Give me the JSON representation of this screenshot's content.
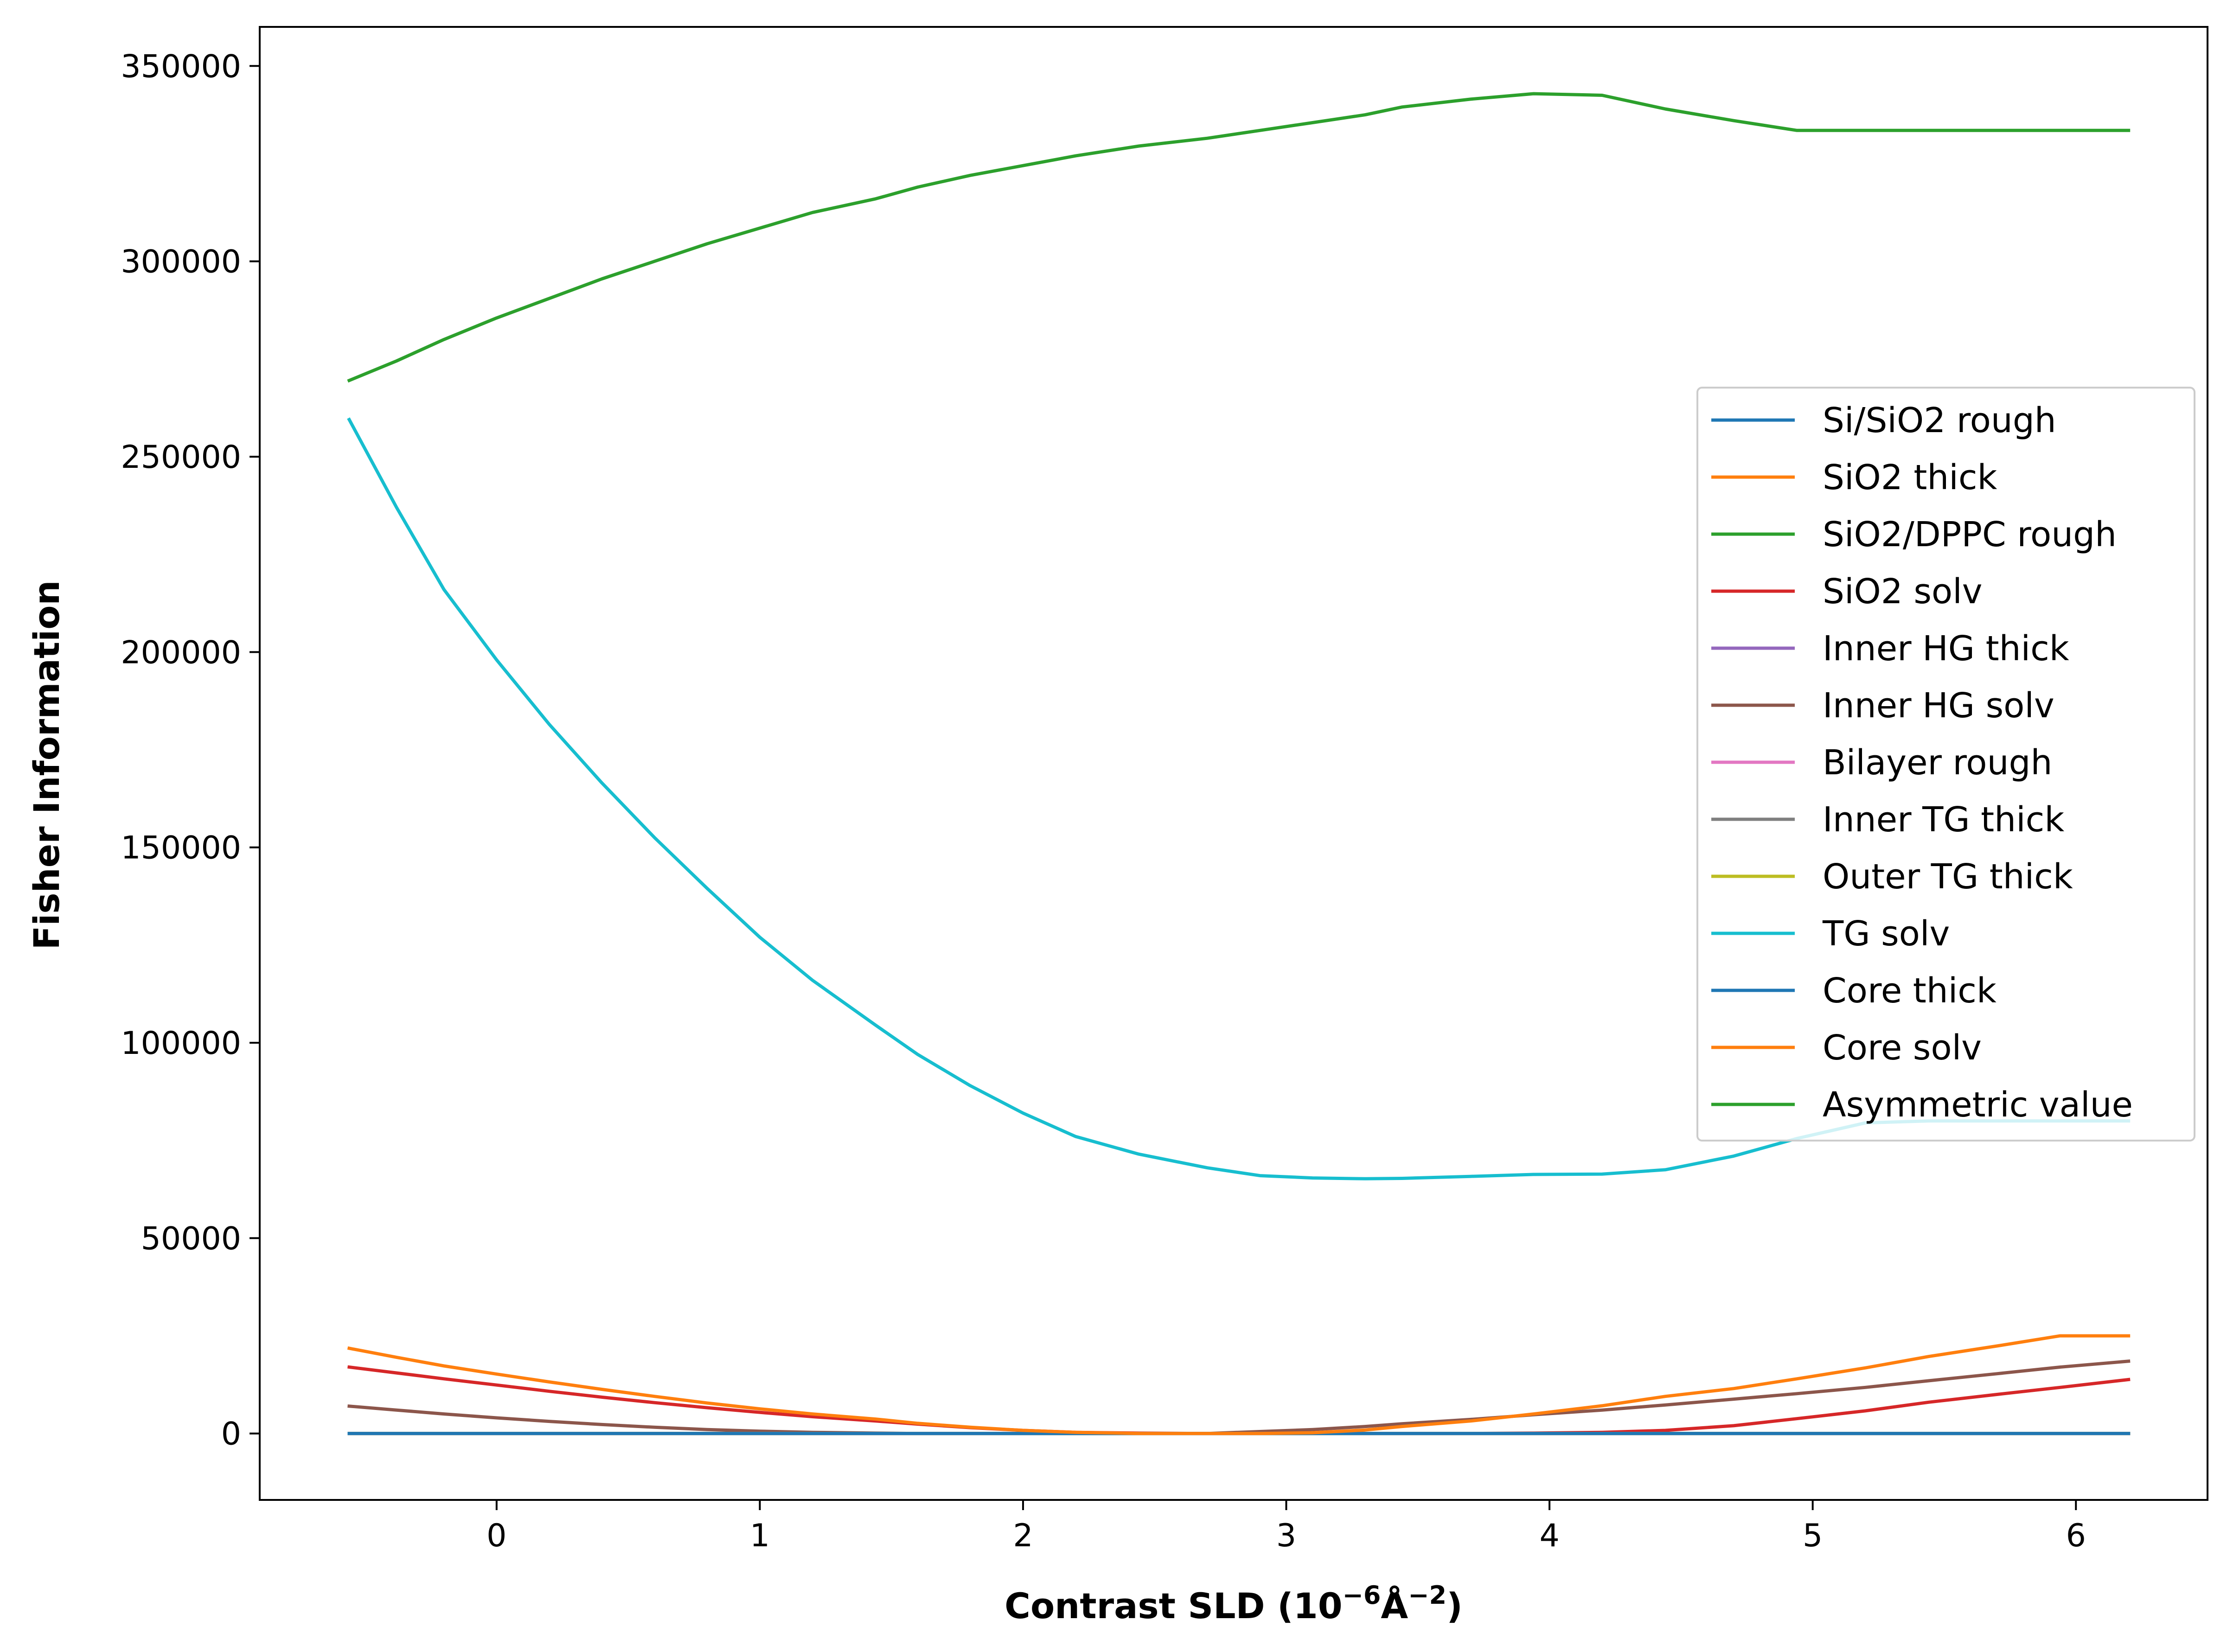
{
  "chart_data": {
    "type": "line",
    "title": "",
    "xlabel_main": "Contrast SLD (10",
    "xlabel_exp1": "−6",
    "xlabel_mid": "Å",
    "xlabel_exp2": "−2",
    "xlabel_end": ")",
    "ylabel": "Fisher Information",
    "xlim": [
      -0.9,
      6.5
    ],
    "ylim": [
      -17000,
      360000
    ],
    "xticks": [
      0,
      1,
      2,
      3,
      4,
      5,
      6
    ],
    "xtick_labels": [
      "0",
      "1",
      "2",
      "3",
      "4",
      "5",
      "6"
    ],
    "yticks": [
      0,
      50000,
      100000,
      150000,
      200000,
      250000,
      300000,
      350000
    ],
    "ytick_labels": [
      "0",
      "50000",
      "100000",
      "150000",
      "200000",
      "250000",
      "300000",
      "350000"
    ],
    "x": [
      -0.56,
      -0.38,
      -0.2,
      0.0,
      0.2,
      0.4,
      0.6,
      0.8,
      1.0,
      1.2,
      1.44,
      1.6,
      1.8,
      2.0,
      2.2,
      2.44,
      2.7,
      2.9,
      3.1,
      3.3,
      3.44,
      3.7,
      3.94,
      4.2,
      4.44,
      4.7,
      4.94,
      5.2,
      5.44,
      5.7,
      5.94,
      6.2
    ],
    "legend_position": "center-right",
    "series": [
      {
        "name": "Si/SiO2 rough",
        "color": "#1f77b4",
        "values": [
          0,
          0,
          0,
          0,
          0,
          0,
          0,
          0,
          0,
          0,
          0,
          0,
          0,
          0,
          0,
          0,
          0,
          0,
          0,
          0,
          0,
          0,
          0,
          0,
          0,
          0,
          0,
          0,
          0,
          0,
          0,
          0
        ]
      },
      {
        "name": "SiO2 thick",
        "color": "#ff7f0e",
        "values": [
          0,
          0,
          0,
          0,
          0,
          0,
          0,
          0,
          0,
          0,
          0,
          0,
          0,
          0,
          0,
          0,
          0,
          0,
          0,
          0,
          0,
          0,
          0,
          0,
          0,
          0,
          0,
          0,
          0,
          0,
          0,
          0
        ]
      },
      {
        "name": "SiO2/DPPC rough",
        "color": "#2ca02c",
        "values": [
          0,
          0,
          0,
          0,
          0,
          0,
          0,
          0,
          0,
          0,
          0,
          0,
          0,
          0,
          0,
          0,
          0,
          0,
          0,
          0,
          0,
          0,
          0,
          0,
          0,
          0,
          0,
          0,
          0,
          0,
          0,
          0
        ]
      },
      {
        "name": "SiO2 solv",
        "color": "#d62728",
        "values": [
          17000,
          15500,
          14000,
          12400,
          10800,
          9300,
          7900,
          6600,
          5400,
          4300,
          3200,
          2400,
          1500,
          800,
          300,
          100,
          0,
          0,
          0,
          0,
          0,
          0,
          100,
          300,
          800,
          2000,
          3800,
          5800,
          8000,
          10000,
          11800,
          13800
        ]
      },
      {
        "name": "Inner HG thick",
        "color": "#9467bd",
        "values": [
          0,
          0,
          0,
          0,
          0,
          0,
          0,
          0,
          0,
          0,
          0,
          0,
          0,
          0,
          0,
          0,
          0,
          0,
          0,
          0,
          0,
          0,
          0,
          0,
          0,
          0,
          0,
          0,
          0,
          0,
          0,
          0
        ]
      },
      {
        "name": "Inner HG solv",
        "color": "#8c564b",
        "values": [
          7000,
          6000,
          5000,
          4000,
          3100,
          2300,
          1600,
          1000,
          600,
          300,
          100,
          0,
          0,
          0,
          0,
          0,
          0,
          500,
          1000,
          1800,
          2500,
          3600,
          4800,
          6000,
          7300,
          8800,
          10200,
          11800,
          13500,
          15300,
          17000,
          18500
        ]
      },
      {
        "name": "Bilayer rough",
        "color": "#e377c2",
        "values": [
          0,
          0,
          0,
          0,
          0,
          0,
          0,
          0,
          0,
          0,
          0,
          0,
          0,
          0,
          0,
          0,
          0,
          0,
          0,
          0,
          0,
          0,
          0,
          0,
          0,
          0,
          0,
          0,
          0,
          0,
          0,
          0
        ]
      },
      {
        "name": "Inner TG thick",
        "color": "#7f7f7f",
        "values": [
          0,
          0,
          0,
          0,
          0,
          0,
          0,
          0,
          0,
          0,
          0,
          0,
          0,
          0,
          0,
          0,
          0,
          0,
          0,
          0,
          0,
          0,
          0,
          0,
          0,
          0,
          0,
          0,
          0,
          0,
          0,
          0
        ]
      },
      {
        "name": "Outer TG thick",
        "color": "#bcbd22",
        "values": [
          0,
          0,
          0,
          0,
          0,
          0,
          0,
          0,
          0,
          0,
          0,
          0,
          0,
          0,
          0,
          0,
          0,
          0,
          0,
          0,
          0,
          0,
          0,
          0,
          0,
          0,
          0,
          0,
          0,
          0,
          0,
          0
        ]
      },
      {
        "name": "TG solv",
        "color": "#17becf",
        "values": [
          259500,
          237000,
          216000,
          198000,
          181500,
          166500,
          152500,
          139500,
          127000,
          116000,
          104500,
          97000,
          89000,
          82000,
          76000,
          71500,
          68000,
          66000,
          65400,
          65200,
          65300,
          65800,
          66300,
          66400,
          67500,
          71000,
          75500,
          79500,
          80000,
          80000,
          80000,
          80000
        ]
      },
      {
        "name": "Core thick",
        "color": "#1f77b4",
        "values": [
          0,
          0,
          0,
          0,
          0,
          0,
          0,
          0,
          0,
          0,
          0,
          0,
          0,
          0,
          0,
          0,
          0,
          0,
          0,
          0,
          0,
          0,
          0,
          0,
          0,
          0,
          0,
          0,
          0,
          0,
          0,
          0
        ]
      },
      {
        "name": "Core solv",
        "color": "#ff7f0e",
        "values": [
          21800,
          19500,
          17300,
          15200,
          13200,
          11300,
          9500,
          7800,
          6300,
          5000,
          3700,
          2600,
          1600,
          800,
          300,
          0,
          0,
          0,
          200,
          900,
          1800,
          3200,
          5000,
          7100,
          9500,
          11500,
          14000,
          16800,
          19700,
          22400,
          25000,
          25000
        ]
      },
      {
        "name": "Asymmetric value",
        "color": "#2ca02c",
        "values": [
          269500,
          274500,
          280000,
          285500,
          290500,
          295500,
          300000,
          304500,
          308500,
          312500,
          316000,
          319000,
          322000,
          324500,
          327000,
          329500,
          331500,
          333500,
          335500,
          337500,
          339500,
          341500,
          342900,
          342500,
          339000,
          336000,
          333500,
          333500,
          333500,
          333500,
          333500,
          333500
        ]
      }
    ]
  }
}
